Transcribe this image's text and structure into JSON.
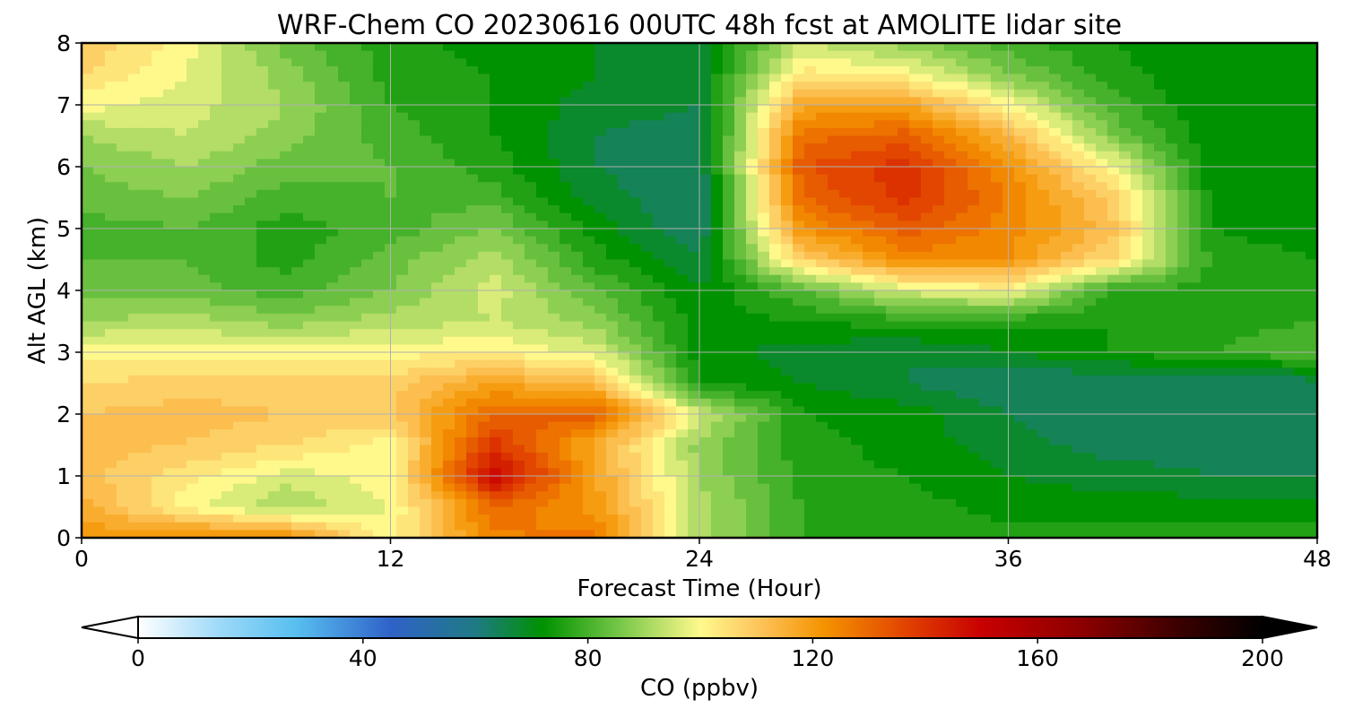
{
  "chart_data": {
    "type": "heatmap",
    "title": "WRF-Chem CO  20230616 00UTC 48h fcst at AMOLITE lidar site",
    "xlabel": "Forecast Time (Hour)",
    "ylabel": "Alt AGL (km)",
    "xlim": [
      0,
      48
    ],
    "ylim": [
      0,
      8
    ],
    "xticks": [
      "0",
      "12",
      "24",
      "36",
      "48"
    ],
    "yticks": [
      "0",
      "1",
      "2",
      "3",
      "4",
      "5",
      "6",
      "7",
      "8"
    ],
    "grid": true,
    "colorbar": {
      "label": "CO  (ppbv)",
      "range": [
        0,
        200
      ],
      "ticks": [
        "0",
        "40",
        "80",
        "120",
        "160",
        "200"
      ],
      "extend": "both",
      "stops": [
        {
          "v": 0,
          "color": "#ffffff"
        },
        {
          "v": 15,
          "color": "#9ad8f8"
        },
        {
          "v": 28,
          "color": "#58bff0"
        },
        {
          "v": 45,
          "color": "#2f62c8"
        },
        {
          "v": 60,
          "color": "#1f7a84"
        },
        {
          "v": 72,
          "color": "#009200"
        },
        {
          "v": 86,
          "color": "#7ac84a"
        },
        {
          "v": 100,
          "color": "#fff98c"
        },
        {
          "v": 110,
          "color": "#fdc65e"
        },
        {
          "v": 122,
          "color": "#f59300"
        },
        {
          "v": 136,
          "color": "#e24600"
        },
        {
          "v": 150,
          "color": "#c80000"
        },
        {
          "v": 168,
          "color": "#8c0000"
        },
        {
          "v": 185,
          "color": "#3c0000"
        },
        {
          "v": 200,
          "color": "#000000"
        }
      ]
    },
    "grid_x_hours": [
      0,
      4,
      8,
      12,
      16,
      20,
      24,
      28,
      32,
      36,
      40,
      44,
      48
    ],
    "grid_y_km": [
      0,
      0.5,
      1,
      1.5,
      2,
      2.5,
      3,
      3.5,
      4,
      4.5,
      5,
      5.5,
      6,
      6.5,
      7,
      7.5,
      8
    ],
    "values_ppbv": [
      [
        120,
        125,
        122,
        100,
        125,
        128,
        92,
        78,
        78,
        76,
        76,
        76,
        76
      ],
      [
        116,
        100,
        90,
        98,
        130,
        120,
        92,
        78,
        76,
        72,
        72,
        72,
        72
      ],
      [
        112,
        104,
        96,
        100,
        150,
        118,
        90,
        76,
        74,
        70,
        68,
        66,
        66
      ],
      [
        112,
        110,
        106,
        100,
        140,
        116,
        88,
        76,
        72,
        68,
        64,
        64,
        64
      ],
      [
        110,
        112,
        110,
        110,
        130,
        132,
        96,
        74,
        72,
        66,
        62,
        62,
        62
      ],
      [
        106,
        108,
        108,
        108,
        118,
        112,
        74,
        70,
        66,
        62,
        62,
        62,
        64
      ],
      [
        100,
        100,
        100,
        100,
        102,
        96,
        72,
        68,
        66,
        70,
        74,
        78,
        82
      ],
      [
        90,
        92,
        88,
        92,
        94,
        88,
        72,
        74,
        76,
        76,
        74,
        76,
        78
      ],
      [
        84,
        84,
        80,
        86,
        96,
        82,
        70,
        82,
        96,
        100,
        78,
        76,
        76
      ],
      [
        82,
        82,
        76,
        84,
        92,
        76,
        66,
        108,
        124,
        122,
        106,
        76,
        74
      ],
      [
        80,
        82,
        76,
        80,
        86,
        72,
        62,
        122,
        132,
        124,
        112,
        74,
        72
      ],
      [
        84,
        86,
        80,
        82,
        80,
        68,
        62,
        130,
        140,
        126,
        108,
        72,
        72
      ],
      [
        86,
        90,
        84,
        82,
        76,
        66,
        62,
        134,
        140,
        122,
        100,
        70,
        72
      ],
      [
        90,
        94,
        88,
        80,
        74,
        66,
        64,
        128,
        132,
        114,
        86,
        70,
        72
      ],
      [
        100,
        96,
        90,
        78,
        74,
        68,
        66,
        118,
        118,
        100,
        80,
        70,
        72
      ],
      [
        106,
        98,
        88,
        76,
        74,
        70,
        68,
        104,
        100,
        86,
        76,
        70,
        72
      ],
      [
        110,
        100,
        84,
        76,
        72,
        70,
        68,
        94,
        88,
        80,
        74,
        70,
        70
      ]
    ]
  }
}
